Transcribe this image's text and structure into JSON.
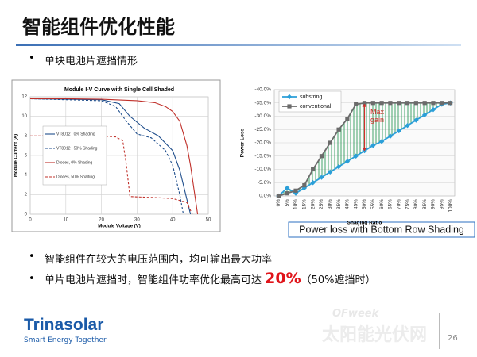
{
  "slide": {
    "title": "智能组件优化性能",
    "subtitle_bullet": "单块电池片遮挡情形",
    "bullets": [
      "智能组件在较大的电压范围内，均可输出最大功率",
      "单片电池片遮挡时，智能组件功率优化最高可达"
    ],
    "highlight": "20%",
    "note": "（50%遮挡时）",
    "caption": "Power loss with Bottom Row Shading",
    "logo": "Trinasolar",
    "tagline": "Smart Energy Together",
    "watermark_brand": "OFweek",
    "watermark": "太阳能光伏网",
    "page_number": 26
  },
  "chart_data": [
    {
      "type": "line",
      "title": "Module I-V Curve with Single Cell Shaded",
      "x_label": "Module Voltage (V)",
      "y_label": "Module Current (A)",
      "xlim": [
        0,
        50
      ],
      "xticks": [
        0,
        10,
        20,
        30,
        40,
        50
      ],
      "ylim": [
        0,
        12
      ],
      "yticks": [
        0,
        2,
        4,
        6,
        8,
        10,
        12
      ],
      "grid": true,
      "legend": "left",
      "series": [
        {
          "name": "VT8012 , 0% Shading",
          "color": "#1f4e8c",
          "dashed": false,
          "x": [
            0,
            20,
            25,
            28,
            32,
            36,
            40,
            42,
            44,
            45
          ],
          "values": [
            11.8,
            11.7,
            11.3,
            10,
            8.8,
            8,
            6.5,
            4.5,
            1.5,
            0
          ]
        },
        {
          "name": "VT8012 , 50% Shading",
          "color": "#1f4e8c",
          "dashed": true,
          "x": [
            0,
            20,
            24,
            27,
            30,
            34,
            38,
            40,
            42,
            43
          ],
          "values": [
            11.8,
            11.6,
            11,
            9.5,
            8.2,
            7.8,
            6.5,
            5,
            2,
            0
          ]
        },
        {
          "name": "Diodes, 0% Shading",
          "color": "#c0302a",
          "dashed": false,
          "x": [
            0,
            10,
            20,
            30,
            35,
            38,
            40,
            42,
            44,
            45,
            46,
            47
          ],
          "values": [
            11.8,
            11.8,
            11.75,
            11.6,
            11.4,
            11,
            10.5,
            9.5,
            7,
            5,
            2.5,
            0
          ]
        },
        {
          "name": "Diodes, 50% Shading",
          "color": "#c0302a",
          "dashed": true,
          "x": [
            0,
            20,
            24,
            26,
            27,
            28,
            35,
            40,
            44,
            45.5
          ],
          "values": [
            8,
            8,
            7.9,
            7.5,
            5,
            1.8,
            1.7,
            1.6,
            1.2,
            0
          ]
        }
      ]
    },
    {
      "type": "line",
      "x_label": "Shading Ratio",
      "y_label": "Power Loss",
      "categories": [
        "0%",
        "5%",
        "10%",
        "15%",
        "20%",
        "25%",
        "30%",
        "35%",
        "40%",
        "45%",
        "50%",
        "55%",
        "60%",
        "65%",
        "70%",
        "75%",
        "80%",
        "85%",
        "90%",
        "95%",
        "100%"
      ],
      "ylim": [
        0,
        -40
      ],
      "yticks": [
        {
          "value": 0,
          "label": "0.0%"
        },
        {
          "value": -5,
          "label": "-5.0%"
        },
        {
          "value": -10,
          "label": "-10.0%"
        },
        {
          "value": -15,
          "label": "-15.0%"
        },
        {
          "value": -20,
          "label": "-20.0%"
        },
        {
          "value": -25,
          "label": "-25.0%"
        },
        {
          "value": -30,
          "label": "-30.0%"
        },
        {
          "value": -35,
          "label": "-35.0%"
        },
        {
          "value": -40,
          "label": "-40.0%"
        }
      ],
      "grid": true,
      "legend": "upper left",
      "annotation": [
        "Max",
        "gain"
      ],
      "annotation_color": "#d0302a",
      "series": [
        {
          "name": "substring",
          "color": "#2b9fd8",
          "marker": "diamond",
          "values": [
            0,
            -3,
            -1,
            -3,
            -5,
            -7,
            -9,
            -11,
            -13,
            -15,
            -17,
            -19,
            -20.5,
            -22.5,
            -24.5,
            -26.5,
            -28.5,
            -30.5,
            -32.5,
            -34.5,
            -35
          ]
        },
        {
          "name": "conventional",
          "color": "#6b6b6b",
          "marker": "square",
          "values": [
            0,
            -1,
            -2,
            -4,
            -10,
            -15,
            -20,
            -25,
            -29,
            -34.5,
            -35,
            -35,
            -35,
            -35,
            -35,
            -35,
            -35,
            -35,
            -35,
            -35,
            -35
          ]
        }
      ]
    }
  ]
}
